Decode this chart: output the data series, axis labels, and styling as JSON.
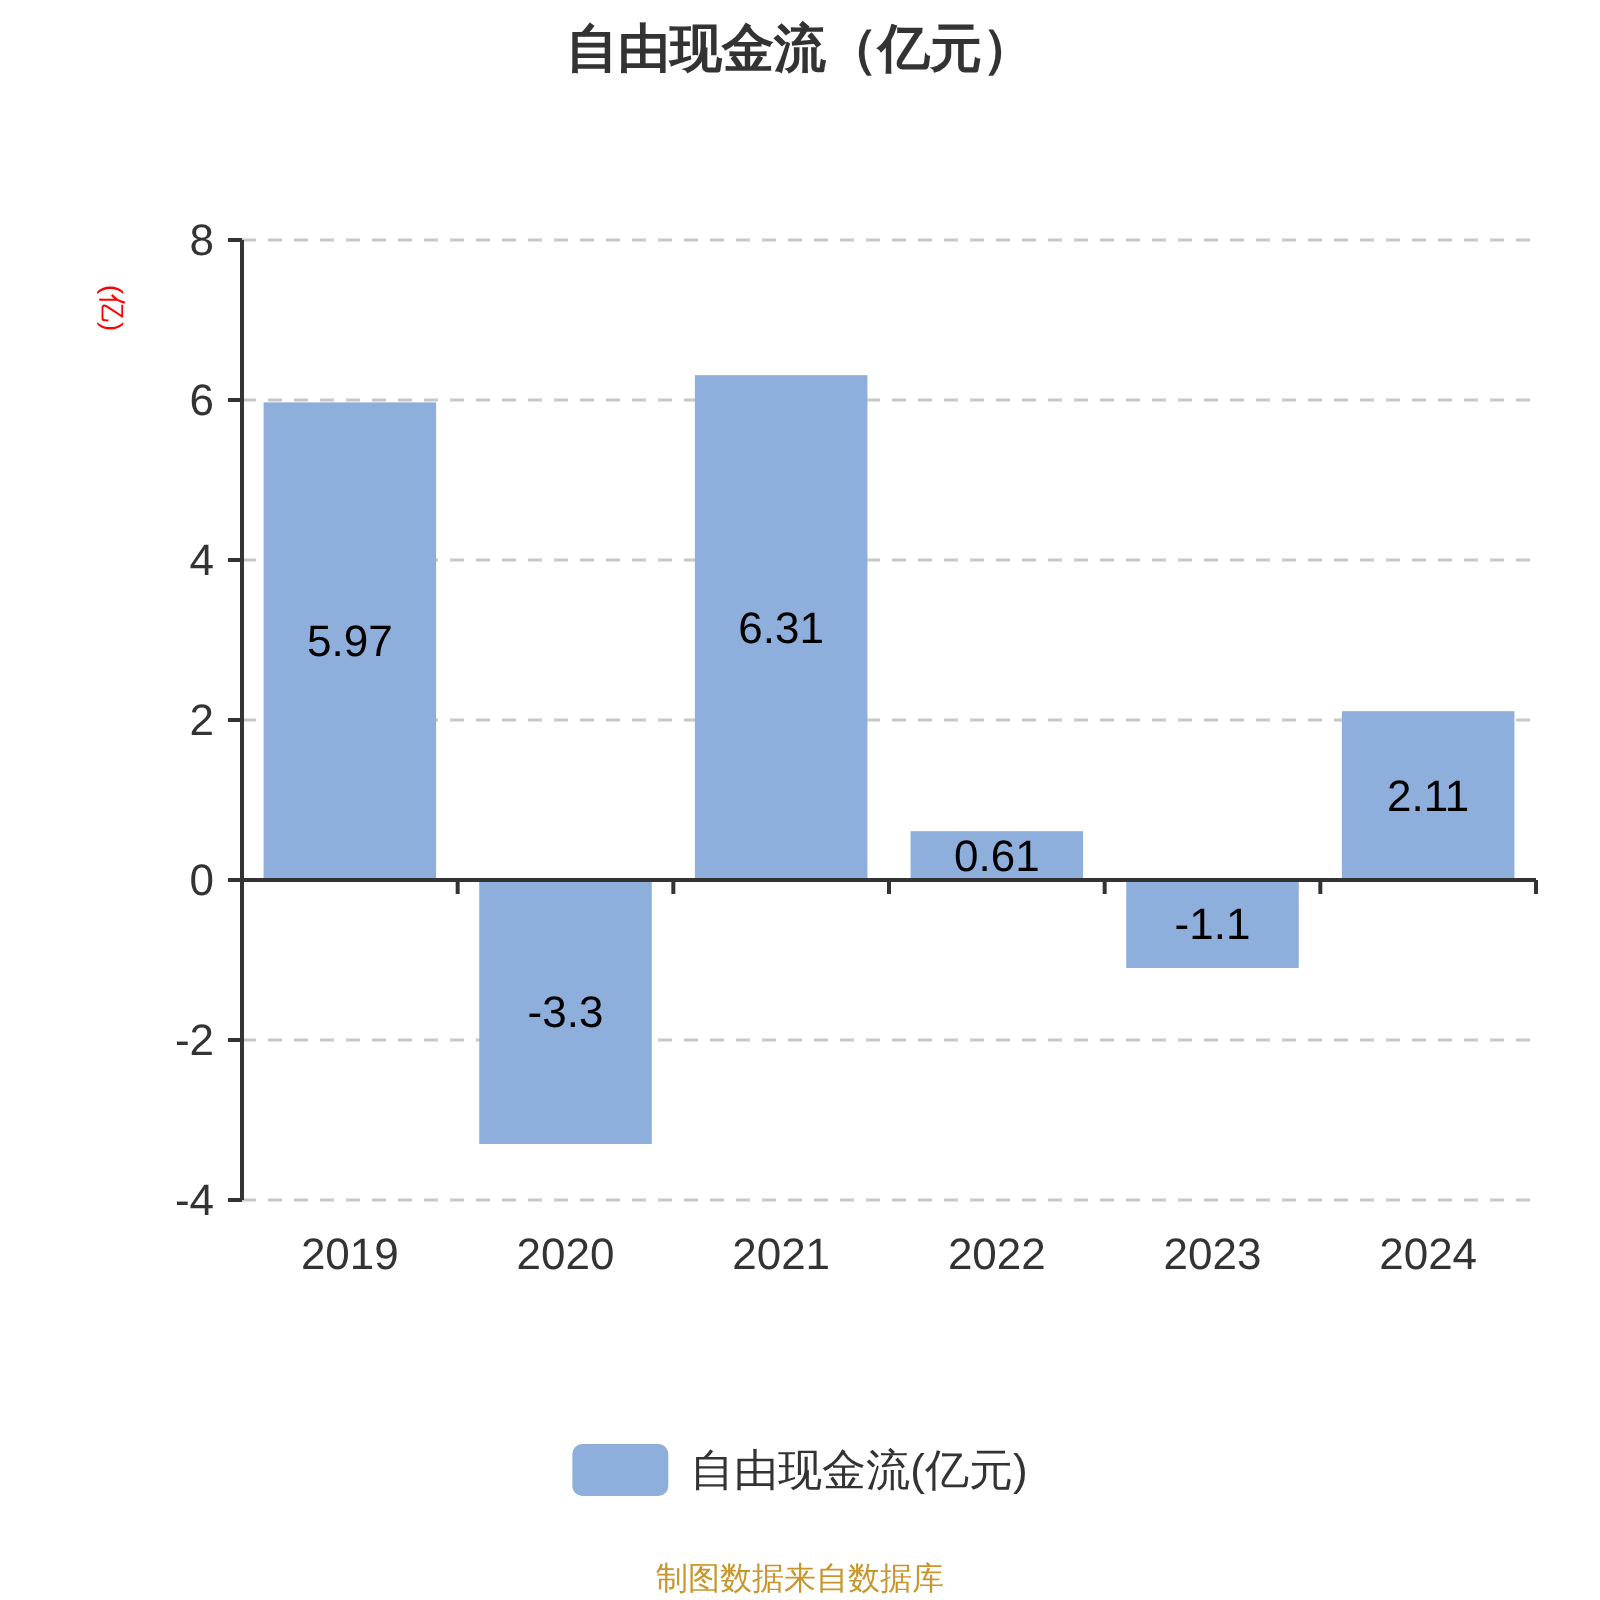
{
  "chart_data": {
    "type": "bar",
    "title": "自由现金流（亿元）",
    "ylabel": "(亿)",
    "categories": [
      "2019",
      "2020",
      "2021",
      "2022",
      "2023",
      "2024"
    ],
    "series": [
      {
        "name": "自由现金流(亿元)",
        "color": "#8eaedb",
        "values": [
          5.97,
          -3.3,
          6.31,
          0.61,
          -1.1,
          2.11
        ]
      }
    ],
    "ylim": [
      -4,
      8
    ],
    "yticks": [
      -4,
      -2,
      0,
      2,
      4,
      6,
      8
    ],
    "grid": "y",
    "legend": "bottom",
    "data_labels": true,
    "annotations": [
      "制图数据来自数据库"
    ]
  }
}
